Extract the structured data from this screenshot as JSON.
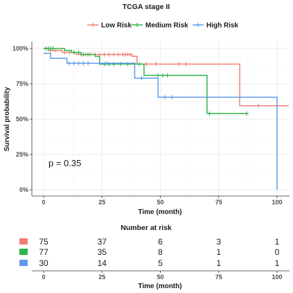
{
  "chart_data": [
    {
      "type": "line",
      "subtype": "kaplan-meier",
      "title": "TCGA stage II",
      "xlabel": "Time (month)",
      "ylabel": "Survival probability",
      "xlim": [
        0,
        105
      ],
      "ylim": [
        0,
        1
      ],
      "x_ticks": [
        0,
        25,
        50,
        75,
        100
      ],
      "y_ticks": [
        0,
        0.25,
        0.5,
        0.75,
        1.0
      ],
      "y_tick_labels": [
        "0%",
        "25%",
        "50%",
        "75%",
        "100%"
      ],
      "legend_position": "top",
      "grid": true,
      "annotation": "p = 0.35",
      "series": [
        {
          "name": "Low Risk",
          "color": "#F07F73",
          "steps": [
            [
              0,
              1.0
            ],
            [
              2,
              0.986
            ],
            [
              8,
              0.972
            ],
            [
              14,
              0.958
            ],
            [
              38,
              0.945
            ],
            [
              40,
              0.89
            ],
            [
              84,
              0.89
            ],
            [
              84,
              0.595
            ],
            [
              105,
              0.595
            ]
          ],
          "censors": [
            [
              3,
              0.986
            ],
            [
              5,
              0.986
            ],
            [
              9,
              0.972
            ],
            [
              11,
              0.972
            ],
            [
              13,
              0.972
            ],
            [
              16,
              0.958
            ],
            [
              18,
              0.958
            ],
            [
              20,
              0.958
            ],
            [
              22,
              0.958
            ],
            [
              24,
              0.958
            ],
            [
              26,
              0.958
            ],
            [
              28,
              0.958
            ],
            [
              30,
              0.958
            ],
            [
              32,
              0.958
            ],
            [
              34,
              0.958
            ],
            [
              35,
              0.958
            ],
            [
              36,
              0.958
            ],
            [
              37,
              0.958
            ],
            [
              44,
              0.89
            ],
            [
              48,
              0.89
            ],
            [
              58,
              0.89
            ],
            [
              61,
              0.89
            ],
            [
              92,
              0.595
            ]
          ]
        },
        {
          "name": "Medium Risk",
          "color": "#2DB34A",
          "steps": [
            [
              0,
              1.0
            ],
            [
              9,
              0.986
            ],
            [
              12,
              0.972
            ],
            [
              16,
              0.958
            ],
            [
              22,
              0.944
            ],
            [
              24,
              0.89
            ],
            [
              43,
              0.89
            ],
            [
              43,
              0.81
            ],
            [
              70,
              0.81
            ],
            [
              70,
              0.54
            ],
            [
              87,
              0.54
            ]
          ],
          "censors": [
            [
              1,
              1.0
            ],
            [
              2,
              1.0
            ],
            [
              3,
              1.0
            ],
            [
              4,
              1.0
            ],
            [
              13,
              0.972
            ],
            [
              15,
              0.972
            ],
            [
              17,
              0.958
            ],
            [
              19,
              0.958
            ],
            [
              26,
              0.89
            ],
            [
              28,
              0.89
            ],
            [
              30,
              0.89
            ],
            [
              33,
              0.89
            ],
            [
              36,
              0.89
            ],
            [
              39,
              0.89
            ],
            [
              41,
              0.89
            ],
            [
              49,
              0.81
            ],
            [
              51,
              0.81
            ],
            [
              53,
              0.81
            ],
            [
              71,
              0.54
            ],
            [
              87,
              0.54
            ]
          ]
        },
        {
          "name": "High Risk",
          "color": "#5B9BEA",
          "steps": [
            [
              0,
              0.965
            ],
            [
              3,
              0.93
            ],
            [
              10,
              0.895
            ],
            [
              39,
              0.895
            ],
            [
              39,
              0.79
            ],
            [
              49,
              0.79
            ],
            [
              49,
              0.655
            ],
            [
              100,
              0.655
            ],
            [
              100,
              0.0
            ]
          ],
          "censors": [
            [
              11,
              0.895
            ],
            [
              13,
              0.895
            ],
            [
              15,
              0.895
            ],
            [
              17,
              0.895
            ],
            [
              19,
              0.895
            ],
            [
              24,
              0.895
            ],
            [
              27,
              0.895
            ],
            [
              42,
              0.79
            ],
            [
              52,
              0.655
            ],
            [
              55,
              0.655
            ]
          ]
        }
      ]
    },
    {
      "type": "table",
      "title": "Number at risk",
      "xlabel": "Time (month)",
      "x_ticks": [
        0,
        25,
        50,
        75,
        100
      ],
      "rows": [
        {
          "name": "Low Risk",
          "color": "#F07F73",
          "values": [
            75,
            37,
            6,
            3,
            1
          ]
        },
        {
          "name": "Medium Risk",
          "color": "#2DB34A",
          "values": [
            77,
            35,
            8,
            1,
            0
          ]
        },
        {
          "name": "High Risk",
          "color": "#5B9BEA",
          "values": [
            30,
            14,
            5,
            1,
            1
          ]
        }
      ]
    }
  ]
}
